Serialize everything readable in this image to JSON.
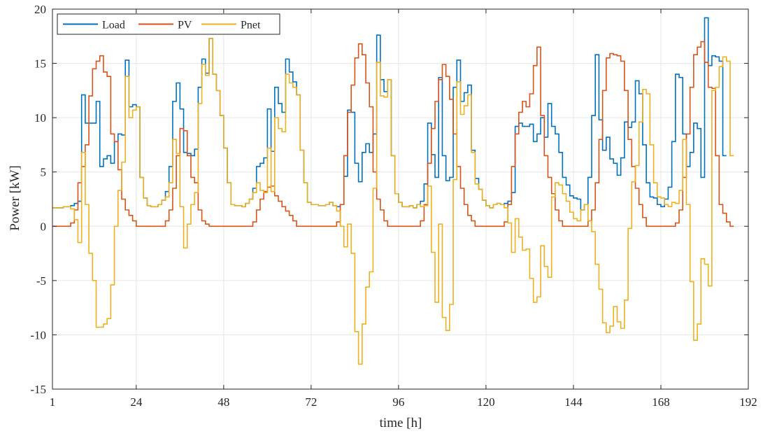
{
  "chart_data": {
    "type": "line",
    "step": true,
    "xlabel": "time [h]",
    "ylabel": "Power [kW]",
    "xlim": [
      1,
      192
    ],
    "ylim": [
      -15,
      20
    ],
    "x_ticks": [
      1,
      24,
      48,
      72,
      96,
      120,
      144,
      168,
      192
    ],
    "y_ticks": [
      -15,
      -10,
      -5,
      0,
      5,
      10,
      15,
      20
    ],
    "grid": true,
    "legend_position": "top-left",
    "legend_orientation": "horizontal",
    "series": [
      {
        "name": "Load",
        "color": "#0072BD",
        "values": [
          1.7,
          1.7,
          1.7,
          1.8,
          1.8,
          1.9,
          2.1,
          2.3,
          12.1,
          9.5,
          9.5,
          9.5,
          11.5,
          5.5,
          6.2,
          6.5,
          5.8,
          7.8,
          8.5,
          8.4,
          15.3,
          11.0,
          11.2,
          11.0,
          4.5,
          2.6,
          1.9,
          1.8,
          1.8,
          2.0,
          2.4,
          3.2,
          5.5,
          11.5,
          13.2,
          10.8,
          6.8,
          6.7,
          6.5,
          7.1,
          12.8,
          15.4,
          14.1,
          17.3,
          14.0,
          12.5,
          10.2,
          7.2,
          4.0,
          2.0,
          1.9,
          1.9,
          1.8,
          2.1,
          2.5,
          3.5,
          5.5,
          5.8,
          6.3,
          10.8,
          6.9,
          12.8,
          11.3,
          10.5,
          15.4,
          14.2,
          13.3,
          12.1,
          7.0,
          4.0,
          2.2,
          2.0,
          2.0,
          1.9,
          1.9,
          2.0,
          2.2,
          1.9,
          1.8,
          2.0,
          4.6,
          10.7,
          10.5,
          5.8,
          4.1,
          6.8,
          7.6,
          6.8,
          8.5,
          17.6,
          13.5,
          12.4,
          13.5,
          6.5,
          3.0,
          2.2,
          1.8,
          1.8,
          1.9,
          1.7,
          2.0,
          2.3,
          3.9,
          9.5,
          6.6,
          4.5,
          13.7,
          6.5,
          4.2,
          4.5,
          12.8,
          15.3,
          11.5,
          12.3,
          13.0,
          7.0,
          4.4,
          3.4,
          2.4,
          1.9,
          1.7,
          2.0,
          2.1,
          2.0,
          2.1,
          2.3,
          3.1,
          9.2,
          9.5,
          9.2,
          9.2,
          9.4,
          7.8,
          8.5,
          10.0,
          8.2,
          11.3,
          9.2,
          8.5,
          6.8,
          4.5,
          3.8,
          2.8,
          2.6,
          2.5,
          1.5,
          2.0,
          4.5,
          10.2,
          15.8,
          9.8,
          7.0,
          8.2,
          6.2,
          5.8,
          4.7,
          6.3,
          9.6,
          9.1,
          9.6,
          13.4,
          12.2,
          7.5,
          4.0,
          2.7,
          2.6,
          2.0,
          1.8,
          2.5,
          3.6,
          7.8,
          14.0,
          13.7,
          8.5,
          5.5,
          6.8,
          9.5,
          9.0,
          4.5,
          19.2,
          14.8,
          15.7,
          15.6,
          15.2,
          6.5
        ]
      },
      {
        "name": "PV",
        "color": "#D95319",
        "values": [
          0,
          0,
          0,
          0,
          0,
          0.3,
          1.5,
          4.0,
          5.5,
          7.5,
          12.0,
          14.5,
          15.2,
          15.7,
          14.2,
          13.8,
          8.5,
          7.8,
          5.2,
          2.5,
          1.5,
          1.0,
          0.5,
          0,
          0,
          0,
          0,
          0,
          0,
          0,
          0,
          0.5,
          1.5,
          3.5,
          6.5,
          9.0,
          8.8,
          6.5,
          4.5,
          4.0,
          1.5,
          0.5,
          0.2,
          0,
          0,
          0,
          0,
          0,
          0,
          0,
          0,
          0,
          0,
          0,
          0,
          0.4,
          1.5,
          2.5,
          3.2,
          3.6,
          3.7,
          2.8,
          2.3,
          1.8,
          1.4,
          1.0,
          0.5,
          0,
          0,
          0,
          0,
          0,
          0,
          0,
          0,
          0,
          0,
          0,
          0.4,
          2.0,
          6.5,
          10.5,
          13.0,
          15.5,
          16.8,
          15.8,
          13.2,
          11.0,
          5.0,
          2.5,
          1.5,
          0.5,
          0,
          0,
          0,
          0,
          0,
          0,
          0,
          0,
          0,
          0.5,
          2.0,
          5.8,
          9.0,
          11.5,
          13.5,
          14.9,
          13.8,
          11.7,
          8.5,
          5.5,
          3.5,
          2.0,
          1.0,
          0.5,
          0,
          0,
          0,
          0,
          0,
          0,
          0,
          0,
          0.4,
          2.0,
          5.5,
          8.5,
          10.5,
          11.5,
          11.0,
          12.2,
          14.8,
          16.5,
          10.2,
          6.5,
          4.5,
          3.0,
          1.5,
          0.5,
          0,
          0,
          0,
          0,
          0,
          0,
          0,
          0.5,
          1.5,
          4.0,
          8.0,
          12.5,
          15.5,
          15.9,
          15.8,
          15.7,
          15.2,
          12.5,
          8.0,
          5.5,
          3.5,
          2.0,
          0.8,
          0,
          0,
          0,
          0,
          0,
          0,
          0,
          0,
          0.3,
          1.5,
          4.5,
          8.5,
          12.8,
          15.8,
          16.5,
          17.0,
          15.1,
          12.8,
          12.7,
          6.5,
          2.0,
          1.2,
          0.4,
          0
        ]
      },
      {
        "name": "Pnet",
        "color": "#EDB120",
        "values": [
          1.7,
          1.7,
          1.7,
          1.8,
          1.8,
          1.6,
          0.6,
          -1.5,
          6.8,
          2.0,
          -2.5,
          -5.0,
          -9.3,
          -9.3,
          -9.0,
          -8.5,
          -5.4,
          0.0,
          3.3,
          5.9,
          13.8,
          10.0,
          10.7,
          11.0,
          4.5,
          2.6,
          1.9,
          1.8,
          1.8,
          2.0,
          2.4,
          2.7,
          4.0,
          8.0,
          6.7,
          1.8,
          -2.0,
          0.2,
          2.0,
          3.1,
          11.3,
          14.9,
          13.9,
          17.3,
          14.0,
          12.5,
          10.2,
          7.2,
          4.0,
          2.0,
          1.9,
          1.9,
          1.8,
          2.1,
          2.5,
          3.1,
          4.0,
          3.3,
          3.1,
          7.2,
          3.2,
          10.0,
          9.0,
          8.7,
          14.0,
          13.2,
          12.8,
          12.1,
          7.0,
          4.0,
          2.2,
          2.0,
          2.0,
          1.9,
          1.9,
          2.0,
          2.2,
          1.9,
          1.4,
          0.0,
          -1.9,
          0.2,
          -2.5,
          -9.7,
          -12.7,
          -9.0,
          -5.6,
          -4.2,
          3.5,
          15.1,
          12.0,
          11.9,
          13.5,
          6.5,
          3.0,
          2.2,
          1.8,
          1.8,
          1.9,
          1.7,
          2.0,
          1.8,
          1.9,
          3.7,
          -2.4,
          -7.0,
          0.2,
          -8.4,
          -9.6,
          -7.2,
          4.3,
          13.3,
          10.3,
          11.1,
          12.1,
          6.8,
          3.9,
          3.4,
          2.4,
          1.9,
          1.7,
          2.0,
          2.1,
          2.0,
          1.7,
          0.3,
          -2.4,
          0.7,
          -1.0,
          -2.2,
          -2.1,
          -4.8,
          -7.0,
          -6.5,
          -1.8,
          -3.7,
          -4.7,
          2.7,
          4.0,
          3.8,
          3.0,
          2.3,
          1.3,
          0.7,
          0.5,
          1.5,
          2.0,
          0.5,
          -0.5,
          -3.5,
          -5.8,
          -8.9,
          -9.8,
          -9.2,
          -7.4,
          -8.8,
          -9.4,
          -6.8,
          -0.2,
          4.1,
          5.6,
          9.6,
          12.6,
          12.2,
          7.5,
          4.0,
          2.7,
          2.6,
          2.0,
          1.8,
          2.2,
          2.1,
          3.3,
          8.0,
          2.0,
          -5.1,
          -10.5,
          -9.0,
          -3.0,
          -3.5,
          -5.5,
          12.5,
          12.8,
          14.7,
          15.6,
          15.2,
          6.5
        ]
      }
    ]
  }
}
